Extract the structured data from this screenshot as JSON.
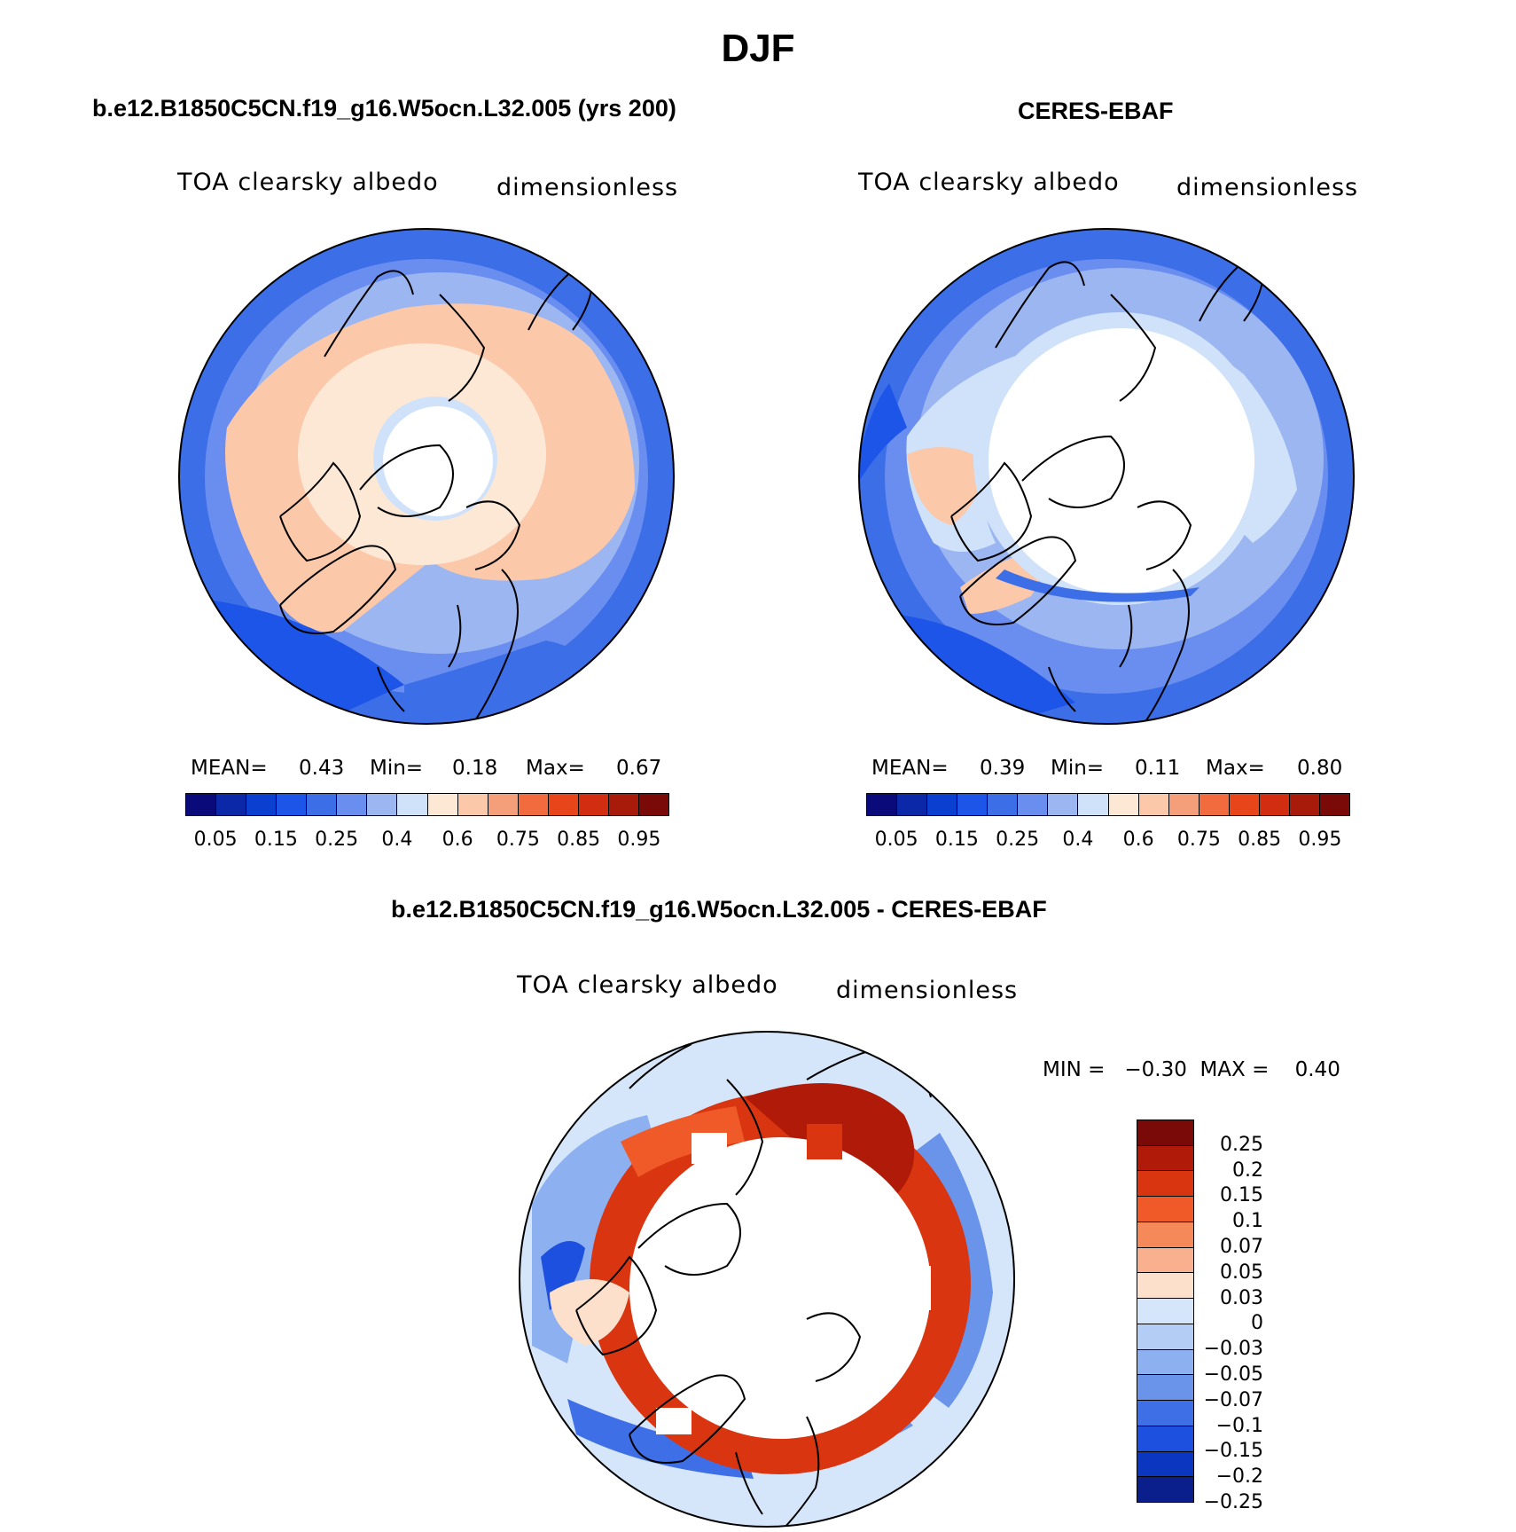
{
  "title": "DJF",
  "panels": {
    "model": {
      "case": "b.e12.B1850C5CN.f19_g16.W5ocn.L32.005 (yrs 200)",
      "var_label": "TOA clearsky albedo",
      "units": "dimensionless",
      "mean_label": "MEAN=",
      "mean": "0.43",
      "min_label": "Min=",
      "min": "0.18",
      "max_label": "Max=",
      "max": "0.67"
    },
    "obs": {
      "case": "CERES-EBAF",
      "var_label": "TOA clearsky albedo",
      "units": "dimensionless",
      "mean_label": "MEAN=",
      "mean": "0.39",
      "min_label": "Min=",
      "min": "0.11",
      "max_label": "Max=",
      "max": "0.80"
    },
    "diff": {
      "case": "b.e12.B1850C5CN.f19_g16.W5ocn.L32.005 - CERES-EBAF",
      "var_label": "TOA clearsky albedo",
      "units": "dimensionless",
      "minmax": "MIN =   −0.30  MAX =    0.40"
    }
  },
  "colorbar_abs": {
    "colors": [
      "#0a0a7a",
      "#0a28a8",
      "#0a3fd0",
      "#1d55e8",
      "#3c6ee8",
      "#6a8ef0",
      "#9cb6f2",
      "#d0e2fa",
      "#fde8d6",
      "#fbc8aa",
      "#f59f7a",
      "#f26b3e",
      "#e9451a",
      "#d22d10",
      "#a81a0a",
      "#7a0a08"
    ],
    "ticks": [
      "0.05",
      "0.15",
      "0.25",
      "0.4",
      "0.6",
      "0.75",
      "0.85",
      "0.95"
    ]
  },
  "colorbar_diff": {
    "colors": [
      "#7a0a08",
      "#b01a08",
      "#d93510",
      "#ef5a28",
      "#f5895a",
      "#f8b08e",
      "#fce0cc",
      "#d6e6fa",
      "#b4cdf5",
      "#8db0f0",
      "#6a94ea",
      "#3f6fe6",
      "#1e50e0",
      "#0a36c0",
      "#0a1e8c"
    ],
    "ticks": [
      "0.25",
      "0.2",
      "0.15",
      "0.1",
      "0.07",
      "0.05",
      "0.03",
      "0",
      "−0.03",
      "−0.05",
      "−0.07",
      "−0.1",
      "−0.15",
      "−0.2",
      "−0.25"
    ]
  }
}
